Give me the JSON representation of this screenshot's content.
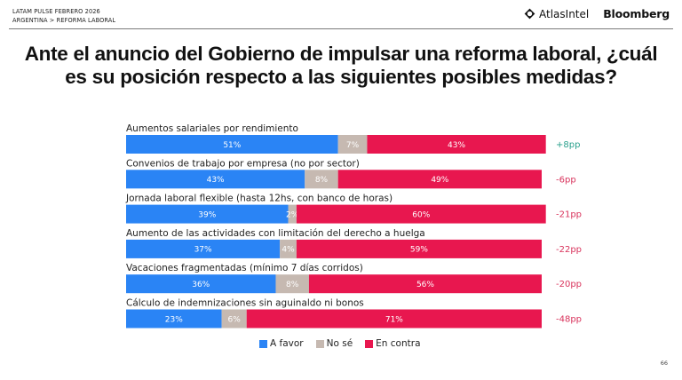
{
  "header": {
    "line1": "LATAM PULSE FEBRERO 2026",
    "line2": "ARGENTINA > REFORMA LABORAL",
    "brand_atlas": "AtlasIntel",
    "brand_atlas_icon": "atlasintel-logo-icon",
    "brand_bloomberg": "Bloomberg"
  },
  "page_number": "66",
  "colors": {
    "favor": "#2a84f5",
    "nose": "#c6b9b1",
    "contra": "#e8174f",
    "diff_positive": "#2aa08c",
    "diff_negative": "#d8325b"
  },
  "chart_data": {
    "type": "bar",
    "orientation": "horizontal",
    "stacked": true,
    "title": "Ante el anuncio del Gobierno de impulsar una reforma laboral, ¿cuál es su posición respecto a las siguientes posibles medidas?",
    "title_line1": "Ante el anuncio del Gobierno de impulsar una reforma laboral, ¿cuál",
    "title_line2": "es su posición respecto a las siguientes posibles medidas?",
    "xlabel": "",
    "ylabel": "",
    "xlim": [
      0,
      100
    ],
    "grid": false,
    "legend_position": "bottom-center",
    "categories": [
      "Aumentos salariales por rendimiento",
      "Convenios de trabajo por empresa (no por sector)",
      "Jornada laboral flexible (hasta 12hs, con banco de horas)",
      "Aumento de las actividades con limitación del derecho a huelga",
      "Vacaciones fragmentadas (mínimo 7 días corridos)",
      "Cálculo de indemnizaciones sin aguinaldo ni bonos"
    ],
    "series": [
      {
        "name": "A favor",
        "key": "favor",
        "values": [
          51,
          43,
          39,
          37,
          36,
          23
        ]
      },
      {
        "name": "No sé",
        "key": "nose",
        "values": [
          7,
          8,
          2,
          4,
          8,
          6
        ]
      },
      {
        "name": "En contra",
        "key": "contra",
        "values": [
          43,
          49,
          60,
          59,
          56,
          71
        ]
      }
    ],
    "net_difference": [
      "+8pp",
      "-6pp",
      "-21pp",
      "-22pp",
      "-20pp",
      "-48pp"
    ],
    "legend": [
      "A favor",
      "No sé",
      "En contra"
    ]
  }
}
